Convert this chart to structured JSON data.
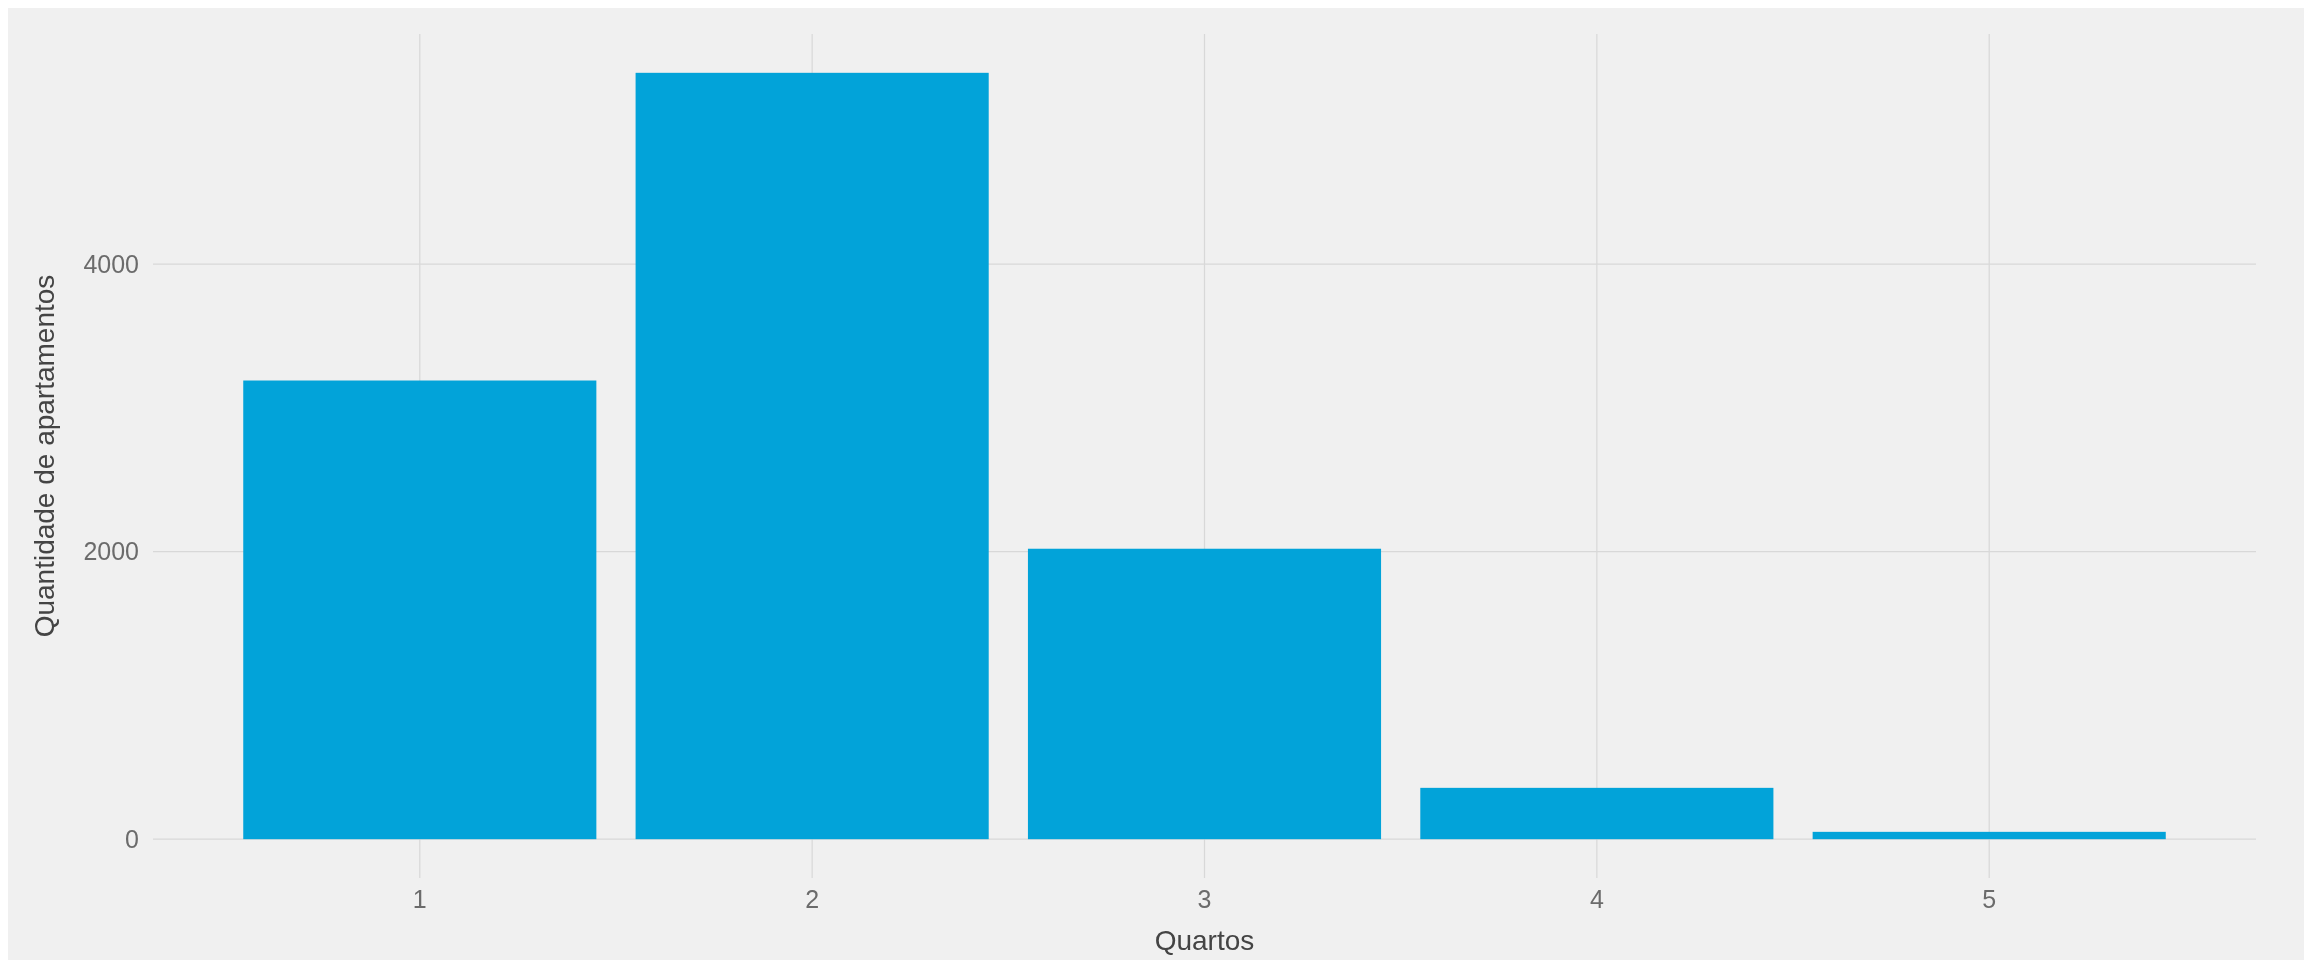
{
  "chart_data": {
    "type": "bar",
    "xlabel": "Quartos",
    "ylabel": "Quantidade de apartamentos",
    "categories": [
      "1",
      "2",
      "3",
      "4",
      "5"
    ],
    "values": [
      3190,
      5330,
      2020,
      357,
      51
    ],
    "color": "#02a3d9",
    "ylim": [
      -270,
      5600
    ],
    "yticks": [
      0,
      2000,
      4000
    ],
    "grid": true
  }
}
